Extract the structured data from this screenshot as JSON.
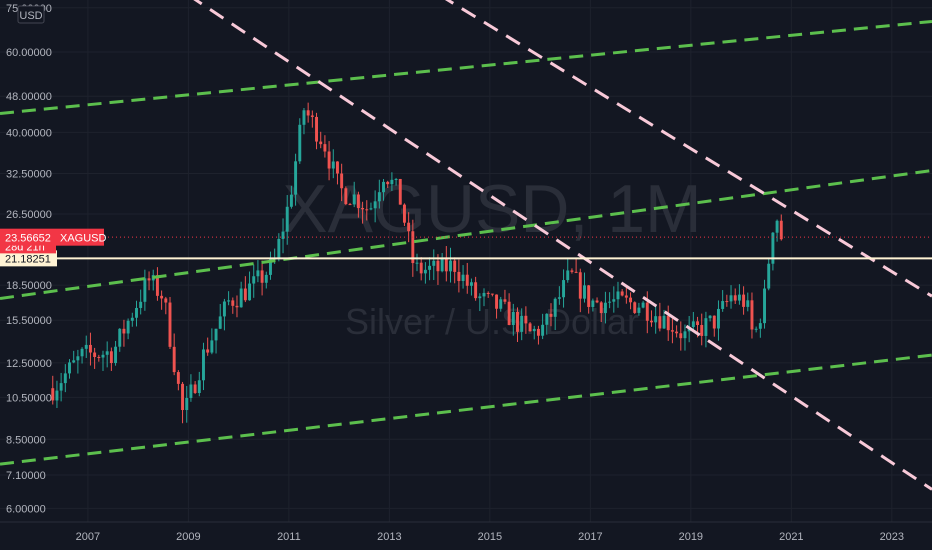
{
  "currency_badge": "USD",
  "watermark": {
    "symbol": "XAGUSD, 1M",
    "name": "Silver / U.S. Dollar"
  },
  "price_tag": {
    "value": "23.56652",
    "symbol": "XAGUSD",
    "color": "#f23645"
  },
  "countdown_tag": {
    "text": "28d 21h",
    "color": "#f23645"
  },
  "level_tag": {
    "value": "21.18251",
    "color": "#fff3d4"
  },
  "colors": {
    "background": "#131722",
    "up": "#26a69a",
    "down": "#ef5350",
    "channel": "#5cbf4d",
    "resistance": "#f8c9d8",
    "level": "#fff3d4"
  },
  "chart_data": {
    "type": "candlestick",
    "scale": "log",
    "ylim": [
      5.6,
      78
    ],
    "xlim": [
      2005.25,
      2023.8
    ],
    "y_ticks": [
      "75.00000",
      "60.00000",
      "48.00000",
      "40.00000",
      "32.50000",
      "26.50000",
      "18.50000",
      "15.50000",
      "12.50000",
      "10.50000",
      "8.50000",
      "7.10000",
      "6.00000"
    ],
    "x_ticks": [
      "2007",
      "2009",
      "2011",
      "2013",
      "2015",
      "2017",
      "2019",
      "2021",
      "2023"
    ],
    "horizontal_level": 21.18,
    "last_price": 23.57,
    "trendlines": [
      {
        "kind": "channel",
        "points": [
          [
            2005.25,
            44.0
          ],
          [
            2023.8,
            70.0
          ]
        ]
      },
      {
        "kind": "channel",
        "points": [
          [
            2005.25,
            17.3
          ],
          [
            2023.8,
            33.0
          ]
        ]
      },
      {
        "kind": "channel",
        "points": [
          [
            2005.25,
            7.5
          ],
          [
            2023.8,
            13.0
          ]
        ]
      },
      {
        "kind": "resistance",
        "points": [
          [
            2009.0,
            80.0
          ],
          [
            2023.8,
            6.6
          ]
        ]
      },
      {
        "kind": "resistance",
        "points": [
          [
            2014.0,
            80.0
          ],
          [
            2023.8,
            17.5
          ]
        ]
      }
    ],
    "anchors": [
      [
        2006.3,
        11.0
      ],
      [
        2006.9,
        13.0
      ],
      [
        2007.5,
        13.2
      ],
      [
        2008.2,
        19.0
      ],
      [
        2008.5,
        17.5
      ],
      [
        2008.9,
        9.5
      ],
      [
        2009.3,
        13.0
      ],
      [
        2009.8,
        17.0
      ],
      [
        2010.3,
        18.5
      ],
      [
        2010.7,
        20.5
      ],
      [
        2011.0,
        28.0
      ],
      [
        2011.3,
        45.0
      ],
      [
        2011.7,
        38.0
      ],
      [
        2012.0,
        30.0
      ],
      [
        2012.4,
        28.5
      ],
      [
        2012.6,
        27.0
      ],
      [
        2012.9,
        33.0
      ],
      [
        2013.2,
        29.0
      ],
      [
        2013.5,
        20.0
      ],
      [
        2014.0,
        20.0
      ],
      [
        2014.3,
        20.5
      ],
      [
        2014.7,
        17.5
      ],
      [
        2015.2,
        16.5
      ],
      [
        2015.8,
        14.5
      ],
      [
        2016.1,
        15.0
      ],
      [
        2016.6,
        19.5
      ],
      [
        2017.0,
        17.0
      ],
      [
        2017.5,
        17.0
      ],
      [
        2018.0,
        16.8
      ],
      [
        2018.5,
        15.5
      ],
      [
        2018.9,
        14.3
      ],
      [
        2019.5,
        15.5
      ],
      [
        2019.8,
        17.5
      ],
      [
        2020.1,
        17.0
      ],
      [
        2020.25,
        14.0
      ],
      [
        2020.5,
        18.0
      ],
      [
        2020.6,
        24.5
      ],
      [
        2020.7,
        26.5
      ],
      [
        2020.8,
        23.6
      ]
    ]
  }
}
